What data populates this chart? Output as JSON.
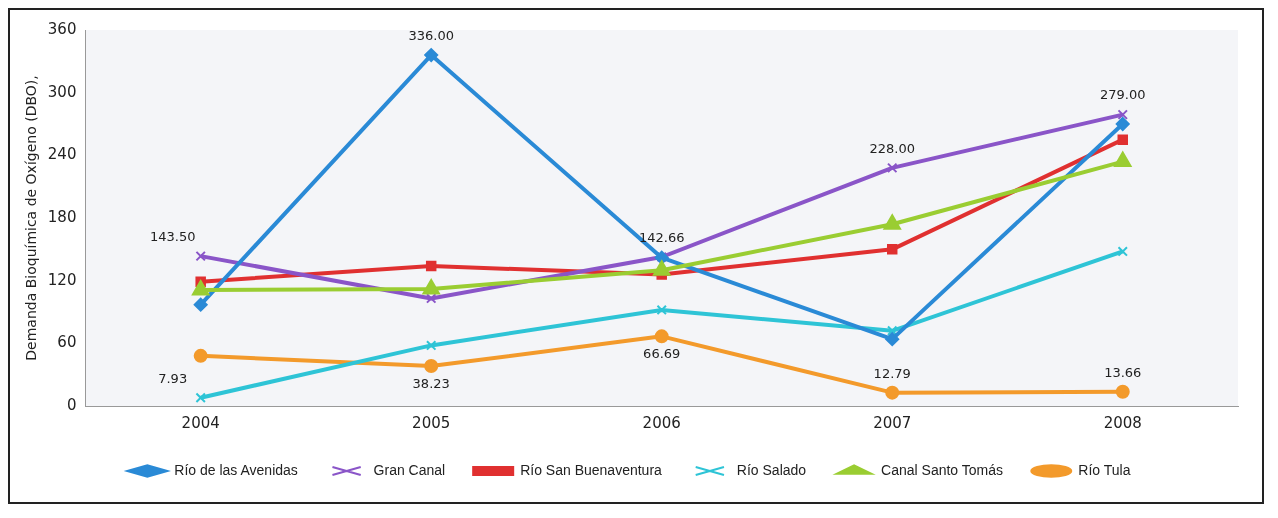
{
  "chart_data": {
    "type": "line",
    "ylabel": "Demanda Bioquímica de Oxígeno (DBO),",
    "categories": [
      "2004",
      "2005",
      "2006",
      "2007",
      "2008"
    ],
    "ylim": [
      0,
      360
    ],
    "yticks": [
      0,
      60,
      120,
      180,
      240,
      300,
      360
    ],
    "grid": false,
    "legend": "bottom",
    "series": [
      {
        "name": "Río de las Avenidas",
        "color": "#2a8ad6",
        "marker": "diamond",
        "values": [
          97,
          336,
          142,
          64,
          270
        ],
        "value_labels": [
          null,
          "336.00",
          null,
          null,
          null
        ]
      },
      {
        "name": "Gran Canal",
        "color": "#8a55c8",
        "marker": "cross",
        "values": [
          143.5,
          103,
          142.66,
          228,
          279
        ],
        "value_labels": [
          "143.50",
          null,
          "142.66",
          "228.00",
          "279.00"
        ]
      },
      {
        "name": "Río San Buenaventura",
        "color": "#e03030",
        "marker": "square",
        "values": [
          119,
          134,
          126,
          150,
          255
        ],
        "value_labels": [
          null,
          null,
          null,
          null,
          null
        ]
      },
      {
        "name": "Río Salado",
        "color": "#2ec4d6",
        "marker": "cross",
        "values": [
          7.93,
          58,
          92,
          72,
          148
        ],
        "value_labels": [
          "7.93",
          null,
          null,
          null,
          null
        ]
      },
      {
        "name": "Canal Santo Tomás",
        "color": "#9acd32",
        "marker": "triangle",
        "values": [
          111,
          112,
          130,
          174,
          234
        ],
        "value_labels": [
          null,
          null,
          null,
          null,
          null
        ]
      },
      {
        "name": "Río Tula",
        "color": "#f39a2b",
        "marker": "circle",
        "values": [
          48,
          38.23,
          66.69,
          12.79,
          13.66
        ],
        "value_labels": [
          null,
          "38.23",
          "66.69",
          "12.79",
          "13.66"
        ]
      }
    ]
  }
}
